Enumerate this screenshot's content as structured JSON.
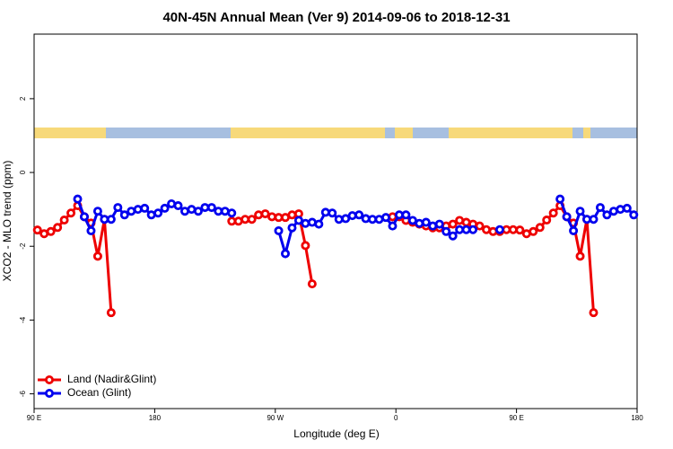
{
  "chart_data": {
    "type": "line",
    "title": "40N-45N Annual Mean (Ver 9)   2014-09-06 to 2018-12-31",
    "x_label": "Longitude (deg E)",
    "y_label": "XCO2 - MLO trend (ppm)",
    "xlim": [
      90,
      540
    ],
    "xticks": [
      {
        "value": 90,
        "label": "90 E"
      },
      {
        "value": 180,
        "label": "180"
      },
      {
        "value": 270,
        "label": "90 W"
      },
      {
        "value": 360,
        "label": "0"
      },
      {
        "value": 450,
        "label": "90 E"
      },
      {
        "value": 540,
        "label": "180"
      }
    ],
    "ylim": [
      -6.4,
      3.75
    ],
    "yticks": [
      -6,
      -4,
      -2,
      0,
      2
    ],
    "legend": "bottom-left",
    "x": [
      92.5,
      97.5,
      102.5,
      107.5,
      112.5,
      117.5,
      122.5,
      127.5,
      132.5,
      137.5,
      142.5,
      147.5,
      152.5,
      157.5,
      162.5,
      167.5,
      172.5,
      177.5,
      182.5,
      187.5,
      192.5,
      197.5,
      202.5,
      207.5,
      212.5,
      217.5,
      222.5,
      227.5,
      232.5,
      237.5,
      242.5,
      247.5,
      252.5,
      257.5,
      262.5,
      267.5,
      272.5,
      277.5,
      282.5,
      287.5,
      292.5,
      297.5,
      302.5,
      307.5,
      312.5,
      317.5,
      322.5,
      327.5,
      332.5,
      337.5,
      342.5,
      347.5,
      352.5,
      357.5,
      362.5,
      367.5,
      372.5,
      377.5,
      382.5,
      387.5,
      392.5,
      397.5,
      402.5,
      407.5,
      412.5,
      417.5,
      422.5,
      427.5,
      432.5,
      437.5,
      442.5,
      447.5,
      452.5,
      457.5,
      462.5,
      467.5,
      472.5,
      477.5,
      482.5,
      487.5,
      492.5,
      497.5,
      502.5,
      507.5,
      512.5,
      517.5,
      522.5,
      527.5,
      532.5,
      537.5
    ],
    "series": [
      {
        "name": "Land (Nadir&Glint)",
        "color": "#ee0000",
        "values": [
          -1.56,
          -1.66,
          -1.6,
          -1.49,
          -1.29,
          -1.1,
          -0.9,
          -1.2,
          -1.37,
          -2.27,
          -1.27,
          -3.8,
          null,
          null,
          null,
          null,
          null,
          null,
          null,
          null,
          null,
          null,
          null,
          null,
          null,
          null,
          null,
          null,
          null,
          -1.32,
          -1.32,
          -1.27,
          -1.27,
          -1.15,
          -1.12,
          -1.2,
          -1.22,
          -1.22,
          -1.15,
          -1.12,
          -1.98,
          -3.02,
          null,
          null,
          null,
          null,
          null,
          null,
          null,
          null,
          null,
          null,
          null,
          -1.2,
          -1.2,
          -1.3,
          -1.35,
          -1.4,
          -1.45,
          -1.5,
          -1.5,
          -1.45,
          -1.4,
          -1.3,
          -1.35,
          -1.4,
          -1.45,
          -1.55,
          -1.6,
          -1.6,
          -1.55,
          -1.55,
          -1.56,
          -1.66,
          -1.6,
          -1.49,
          -1.29,
          -1.1,
          -0.9,
          -1.2,
          -1.37,
          -2.27,
          -1.27,
          -3.8,
          null,
          null,
          null,
          null,
          null,
          null
        ]
      },
      {
        "name": "Ocean (Glint)",
        "color": "#0000ee",
        "values": [
          null,
          null,
          null,
          null,
          null,
          null,
          -0.72,
          -1.2,
          -1.58,
          -1.05,
          -1.27,
          -1.27,
          -0.95,
          -1.15,
          -1.05,
          -1.0,
          -0.97,
          -1.15,
          -1.1,
          -0.97,
          -0.85,
          -0.9,
          -1.05,
          -1.0,
          -1.05,
          -0.95,
          -0.95,
          -1.05,
          -1.05,
          -1.1,
          null,
          null,
          null,
          null,
          null,
          null,
          -1.58,
          -2.2,
          -1.5,
          -1.3,
          -1.38,
          -1.35,
          -1.4,
          -1.08,
          -1.1,
          -1.27,
          -1.25,
          -1.17,
          -1.15,
          -1.25,
          -1.27,
          -1.27,
          -1.22,
          -1.45,
          -1.15,
          -1.15,
          -1.3,
          -1.38,
          -1.35,
          -1.45,
          -1.4,
          -1.6,
          -1.72,
          -1.55,
          -1.55,
          -1.55,
          null,
          null,
          null,
          -1.55,
          null,
          null,
          null,
          null,
          null,
          null,
          null,
          null,
          -0.72,
          -1.2,
          -1.58,
          -1.05,
          -1.27,
          -1.27,
          -0.95,
          -1.15,
          -1.05,
          -1.0,
          -0.97,
          -1.15
        ]
      }
    ]
  }
}
